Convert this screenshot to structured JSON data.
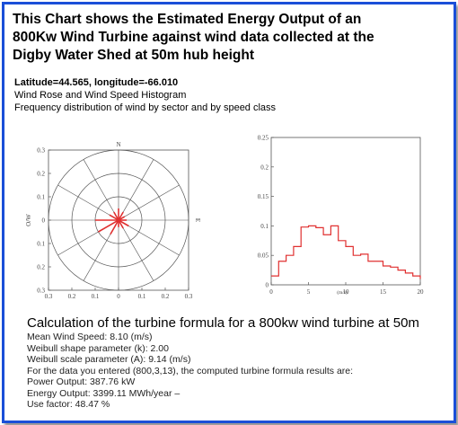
{
  "title": {
    "line1": "This Chart shows the Estimated Energy Output of an",
    "line2": "800Kw Wind Turbine against wind data collected at the",
    "line3": "Digby Water Shed at 50m hub height"
  },
  "meta": {
    "coords": "Latitude=44.565, longitude=-66.010",
    "subtitle1": "Wind Rose and Wind Speed Histogram",
    "subtitle2": "Frequency distribution of wind by sector and by speed class"
  },
  "colors": {
    "border": "#1a4fd8",
    "series": "#e03030",
    "axis": "#555555"
  },
  "chart_data": [
    {
      "type": "polar",
      "direction_labels": [
        "N",
        "O/W",
        "E"
      ],
      "r_ticks": [
        0.1,
        0.2,
        0.3
      ],
      "x_ticks": [
        "0.3",
        "0.2",
        "0.1",
        "0",
        "0.1",
        "0.2",
        "0.3"
      ],
      "y_ticks": [
        "0.3",
        "0.2",
        "0.1",
        "0",
        "0.1",
        "0.2",
        "0.3"
      ],
      "sectors_deg": [
        0,
        30,
        60,
        90,
        120,
        150,
        180,
        210,
        240,
        270,
        300,
        330
      ],
      "values": [
        0.05,
        0.04,
        0.03,
        0.035,
        0.05,
        0.04,
        0.03,
        0.07,
        0.1,
        0.1,
        0.045,
        0.04
      ],
      "color": "#e03030"
    },
    {
      "type": "line",
      "xlabel": "(m/s)",
      "ylabel": "",
      "x": [
        0,
        1,
        2,
        3,
        4,
        5,
        6,
        7,
        8,
        9,
        10,
        11,
        12,
        13,
        14,
        15,
        16,
        17,
        18,
        19,
        20
      ],
      "values": [
        0.015,
        0.04,
        0.05,
        0.065,
        0.098,
        0.1,
        0.097,
        0.085,
        0.1,
        0.075,
        0.065,
        0.05,
        0.052,
        0.04,
        0.04,
        0.032,
        0.03,
        0.025,
        0.02,
        0.015,
        0.01
      ],
      "xlim": [
        0,
        20
      ],
      "ylim": [
        0,
        0.25
      ],
      "x_ticks": [
        "0",
        "5",
        "10",
        "15",
        "20"
      ],
      "y_ticks": [
        "0",
        "0.05",
        "0.1",
        "0.15",
        "0.2",
        "0.25"
      ],
      "color": "#e03030"
    }
  ],
  "calc": {
    "heading": "Calculation of the turbine formula for a 800kw wind turbine at 50m",
    "lines": [
      "Mean Wind Speed: 8.10 (m/s)",
      "Weibull shape parameter (k): 2.00",
      "Weibull scale parameter (A): 9.14 (m/s)",
      "For the data you entered (800,3,13), the computed turbine formula results are:",
      "Power Output: 387.76 kW",
      "Energy Output: 3399.11 MWh/year –",
      "Use factor: 48.47 %"
    ]
  }
}
